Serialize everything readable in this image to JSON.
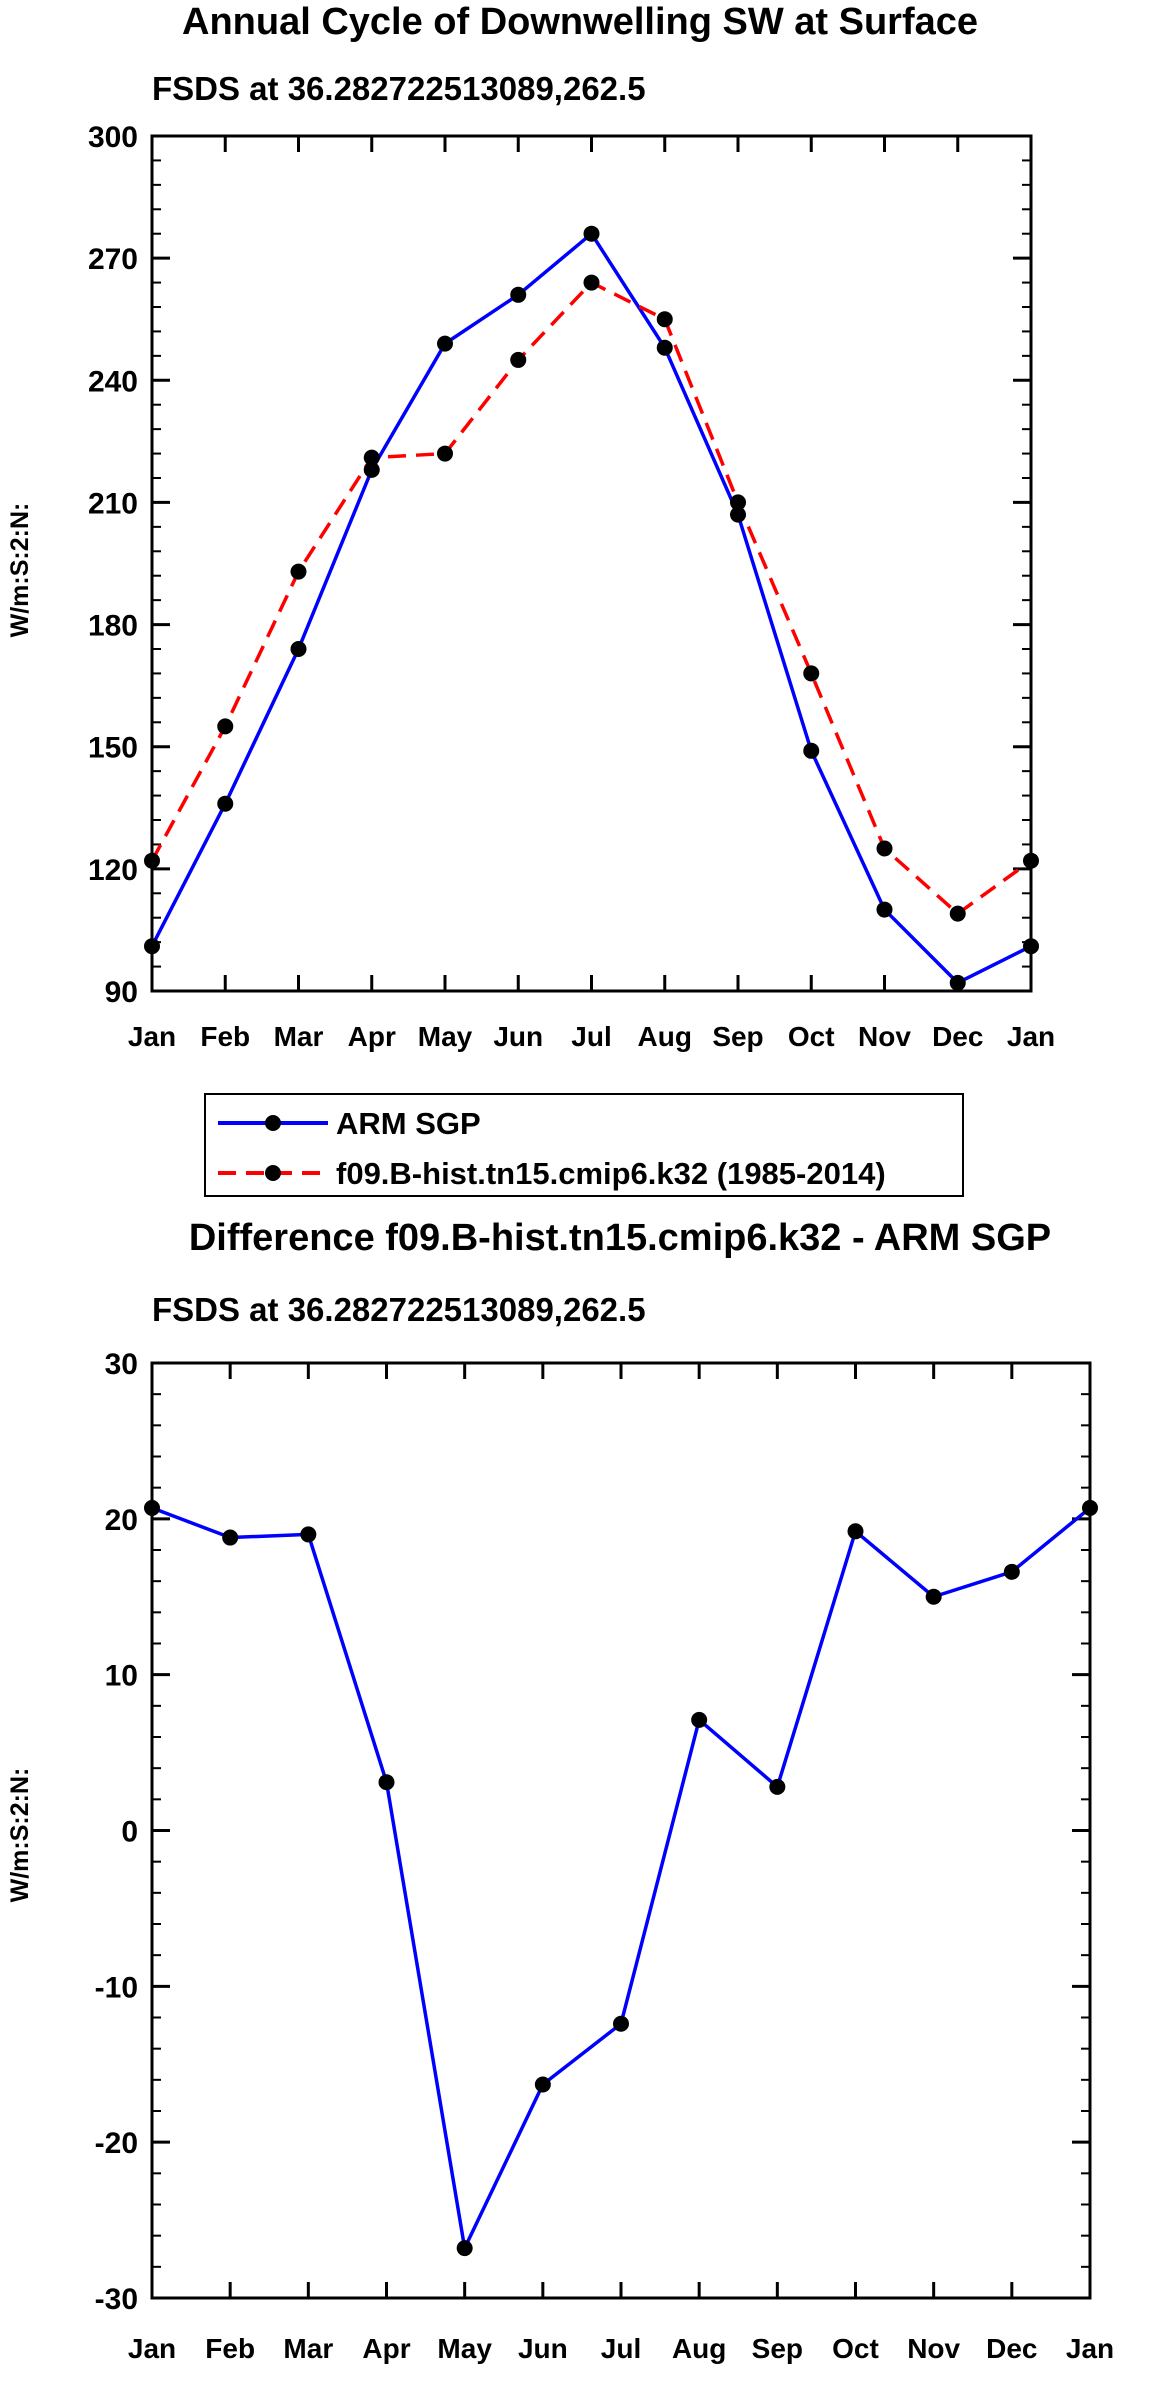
{
  "chart_data": [
    {
      "type": "line",
      "title": "Annual Cycle of Downwelling SW at Surface",
      "subtitle": "FSDS at 36.282722513089,262.5",
      "xlabel": "",
      "ylabel": "W/m:S:2:N:",
      "categories": [
        "Jan",
        "Feb",
        "Mar",
        "Apr",
        "May",
        "Jun",
        "Jul",
        "Aug",
        "Sep",
        "Oct",
        "Nov",
        "Dec",
        "Jan"
      ],
      "ylim": [
        90,
        300
      ],
      "yticks": [
        90,
        120,
        150,
        180,
        210,
        240,
        270,
        300
      ],
      "series": [
        {
          "name": "ARM SGP",
          "color": "#0000ff",
          "dash": "solid",
          "marker": "filled-circle",
          "values": [
            101,
            136,
            174,
            218,
            249,
            261,
            276,
            248,
            207,
            149,
            110,
            92,
            101
          ]
        },
        {
          "name": "f09.B-hist.tn15.cmip6.k32 (1985-2014)",
          "color": "#ff0000",
          "dash": "dashed",
          "marker": "filled-circle",
          "values": [
            122,
            155,
            193,
            221,
            222,
            245,
            264,
            255,
            210,
            168,
            125,
            109,
            122
          ]
        }
      ],
      "legend": {
        "position": "below-plot",
        "entries": [
          "ARM SGP",
          "f09.B-hist.tn15.cmip6.k32 (1985-2014)"
        ]
      }
    },
    {
      "type": "line",
      "title": "Difference f09.B-hist.tn15.cmip6.k32 - ARM SGP",
      "subtitle": "FSDS at 36.282722513089,262.5",
      "xlabel": "",
      "ylabel": "W/m:S:2:N:",
      "categories": [
        "Jan",
        "Feb",
        "Mar",
        "Apr",
        "May",
        "Jun",
        "Jul",
        "Aug",
        "Sep",
        "Oct",
        "Nov",
        "Dec",
        "Jan"
      ],
      "ylim": [
        -30,
        30
      ],
      "yticks": [
        -30,
        -20,
        -10,
        0,
        10,
        20,
        30
      ],
      "series": [
        {
          "name": "Difference",
          "color": "#0000ff",
          "dash": "solid",
          "marker": "filled-circle",
          "values": [
            20.7,
            18.8,
            19.0,
            3.1,
            -26.8,
            -16.3,
            -12.4,
            7.1,
            2.8,
            19.2,
            15.0,
            16.6,
            20.7
          ]
        }
      ]
    }
  ]
}
